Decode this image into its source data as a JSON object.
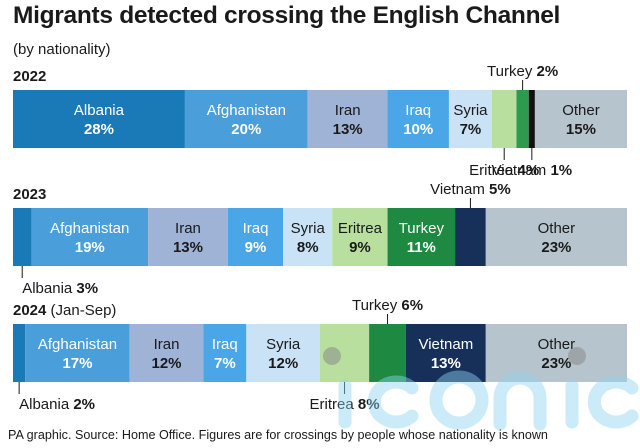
{
  "title": "Migrants detected crossing the English Channel",
  "subtitle": "(by nationality)",
  "footer": "PA graphic. Source: Home Office. Figures are for crossings by people whose nationality is known",
  "chart_data": {
    "type": "bar",
    "stacked": true,
    "orientation": "horizontal",
    "unit": "%",
    "rows": [
      {
        "year": "2022",
        "suffix": "",
        "segments": [
          {
            "name": "Albania",
            "value": 28,
            "color": "#1a7ab8",
            "text": "#ffffff",
            "label": "inside"
          },
          {
            "name": "Afghanistan",
            "value": 20,
            "color": "#4a9fdb",
            "text": "#ffffff",
            "label": "inside"
          },
          {
            "name": "Iran",
            "value": 13,
            "color": "#9fb3d6",
            "text": "#1a1a1a",
            "label": "inside"
          },
          {
            "name": "Iraq",
            "value": 10,
            "color": "#4aa6e6",
            "text": "#ffffff",
            "label": "inside"
          },
          {
            "name": "Syria",
            "value": 7,
            "color": "#c9e2f5",
            "text": "#1a1a1a",
            "label": "inside"
          },
          {
            "name": "Eritrea",
            "value": 4,
            "color": "#b9df9f",
            "text": "#1a1a1a",
            "label": "below"
          },
          {
            "name": "Turkey",
            "value": 2,
            "color": "#2e9a4d",
            "text": "#ffffff",
            "label": "above"
          },
          {
            "name": "Vietnam",
            "value": 1,
            "color": "#111111",
            "text": "#ffffff",
            "label": "below"
          },
          {
            "name": "Other",
            "value": 15,
            "color": "#b6c4cd",
            "text": "#1a1a1a",
            "label": "inside"
          }
        ]
      },
      {
        "year": "2023",
        "suffix": "",
        "segments": [
          {
            "name": "Albania",
            "value": 3,
            "color": "#1a7ab8",
            "text": "#ffffff",
            "label": "below"
          },
          {
            "name": "Afghanistan",
            "value": 19,
            "color": "#4a9fdb",
            "text": "#ffffff",
            "label": "inside"
          },
          {
            "name": "Iran",
            "value": 13,
            "color": "#9fb3d6",
            "text": "#1a1a1a",
            "label": "inside"
          },
          {
            "name": "Iraq",
            "value": 9,
            "color": "#4aa6e6",
            "text": "#ffffff",
            "label": "inside"
          },
          {
            "name": "Syria",
            "value": 8,
            "color": "#c9e2f5",
            "text": "#1a1a1a",
            "label": "inside"
          },
          {
            "name": "Eritrea",
            "value": 9,
            "color": "#b9df9f",
            "text": "#1a1a1a",
            "label": "inside"
          },
          {
            "name": "Turkey",
            "value": 11,
            "color": "#1e8a41",
            "text": "#ffffff",
            "label": "inside"
          },
          {
            "name": "Vietnam",
            "value": 5,
            "color": "#17305a",
            "text": "#ffffff",
            "label": "above"
          },
          {
            "name": "Other",
            "value": 23,
            "color": "#b6c4cd",
            "text": "#1a1a1a",
            "label": "inside"
          }
        ]
      },
      {
        "year": "2024",
        "suffix": "(Jan-Sep)",
        "segments": [
          {
            "name": "Albania",
            "value": 2,
            "color": "#1a7ab8",
            "text": "#ffffff",
            "label": "below"
          },
          {
            "name": "Afghanistan",
            "value": 17,
            "color": "#4a9fdb",
            "text": "#ffffff",
            "label": "inside"
          },
          {
            "name": "Iran",
            "value": 12,
            "color": "#9fb3d6",
            "text": "#1a1a1a",
            "label": "inside"
          },
          {
            "name": "Iraq",
            "value": 7,
            "color": "#4aa6e6",
            "text": "#ffffff",
            "label": "inside"
          },
          {
            "name": "Syria",
            "value": 12,
            "color": "#c9e2f5",
            "text": "#1a1a1a",
            "label": "inside"
          },
          {
            "name": "Eritrea",
            "value": 8,
            "color": "#b9df9f",
            "text": "#1a1a1a",
            "label": "below"
          },
          {
            "name": "Turkey",
            "value": 6,
            "color": "#1e8a41",
            "text": "#ffffff",
            "label": "above"
          },
          {
            "name": "Vietnam",
            "value": 13,
            "color": "#17305a",
            "text": "#ffffff",
            "label": "inside"
          },
          {
            "name": "Other",
            "value": 23,
            "color": "#b6c4cd",
            "text": "#1a1a1a",
            "label": "inside"
          }
        ]
      }
    ]
  }
}
